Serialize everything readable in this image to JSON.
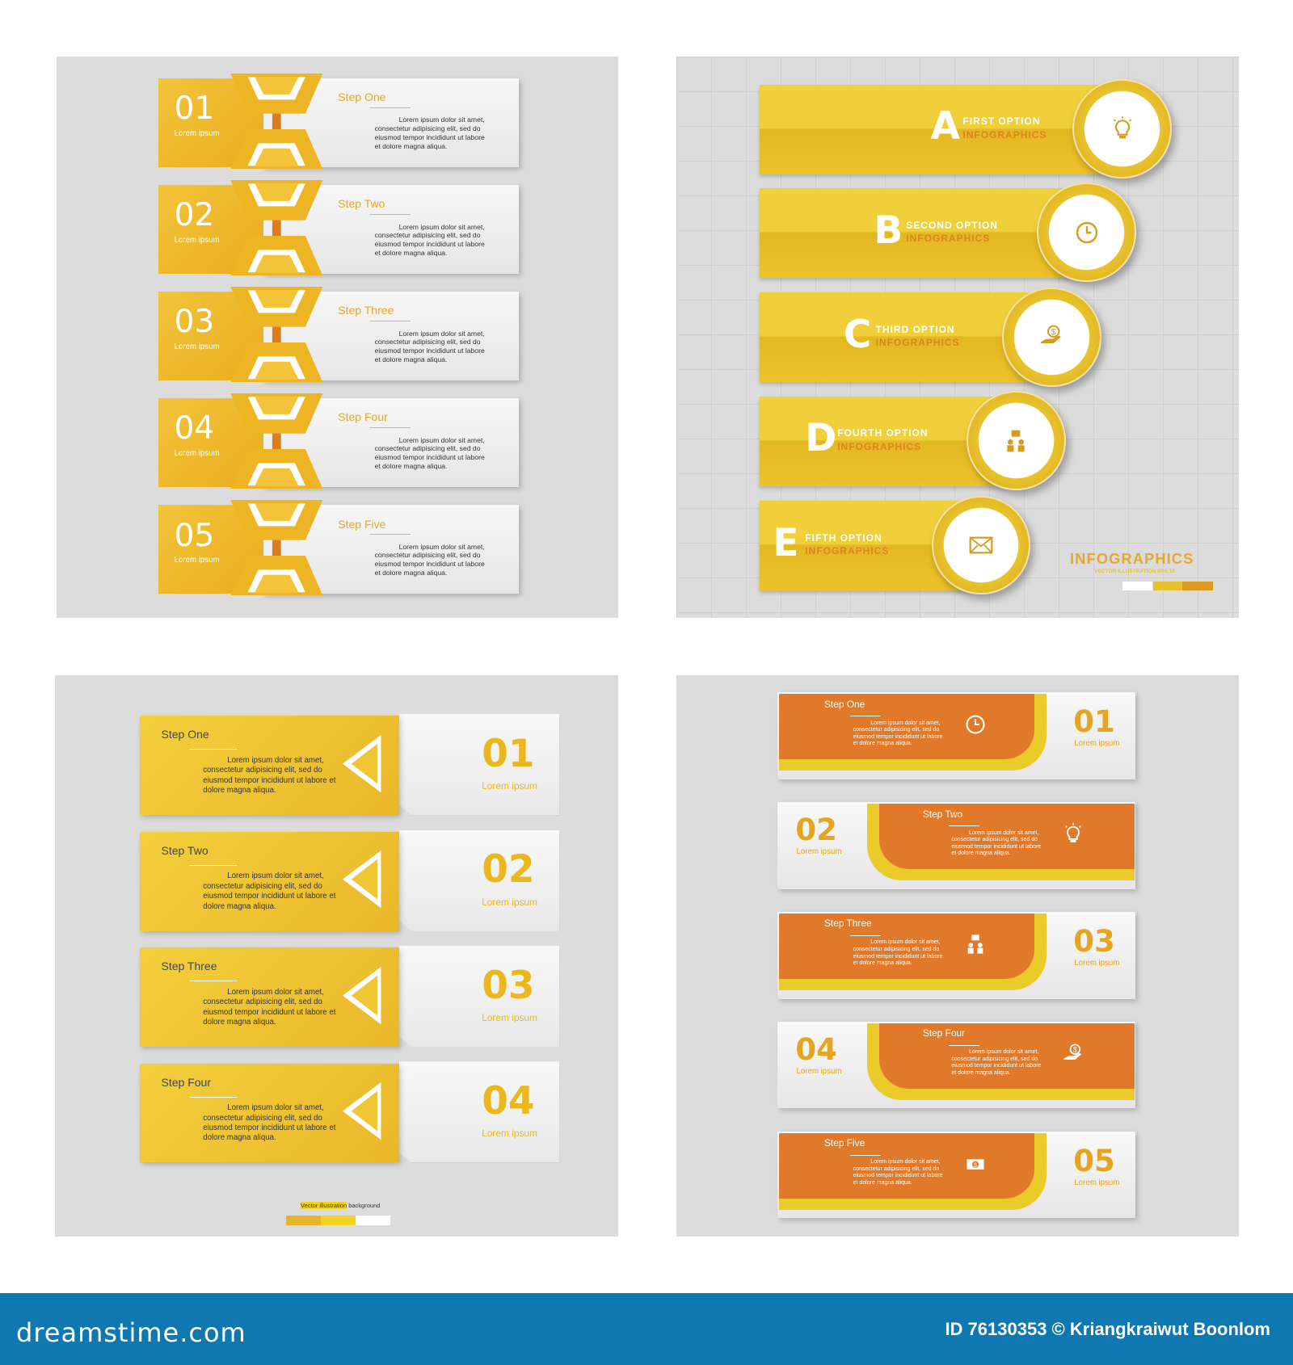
{
  "colors": {
    "yellow": "#f0c030",
    "orange": "#e07a2a",
    "panel": "#dcdcdc",
    "banner": "#0f78b0"
  },
  "top_left": {
    "rows": [
      {
        "number": "01",
        "sub": "Lorem ipsum",
        "title": "Step One",
        "text": "Lorem ipsum dolor sit amet, consectetur adipisicing elit, sed do eiusmod tempor incididunt ut labore et dolore magna aliqua."
      },
      {
        "number": "02",
        "sub": "Lorem ipsum",
        "title": "Step Two",
        "text": "Lorem ipsum dolor sit amet, consectetur adipisicing elit, sed do eiusmod tempor incididunt ut labore et dolore magna aliqua."
      },
      {
        "number": "03",
        "sub": "Lorem ipsum",
        "title": "Step Three",
        "text": "Lorem ipsum dolor sit amet, consectetur adipisicing elit, sed do eiusmod tempor incididunt ut labore et dolore magna aliqua."
      },
      {
        "number": "04",
        "sub": "Lorem ipsum",
        "title": "Step Four",
        "text": "Lorem ipsum dolor sit amet, consectetur adipisicing elit, sed do eiusmod tempor incididunt ut labore et dolore magna aliqua."
      },
      {
        "number": "05",
        "sub": "Lorem ipsum",
        "title": "Step Five",
        "text": "Lorem ipsum dolor sit amet, consectetur adipisicing elit, sed do eiusmod tempor incididunt ut labore et dolore magna aliqua."
      }
    ]
  },
  "top_right": {
    "rows": [
      {
        "letter": "A",
        "line1": "FIRST OPTION",
        "line2": "INFOGRAPHICS",
        "icon": "lightbulb-icon"
      },
      {
        "letter": "B",
        "line1": "SECOND OPTION",
        "line2": "INFOGRAPHICS",
        "icon": "clock-icon"
      },
      {
        "letter": "C",
        "line1": "THIRD OPTION",
        "line2": "INFOGRAPHICS",
        "icon": "hand-dollar-icon"
      },
      {
        "letter": "D",
        "line1": "FOURTH OPTION",
        "line2": "INFOGRAPHICS",
        "icon": "org-chart-icon"
      },
      {
        "letter": "E",
        "line1": "FIFTH OPTION",
        "line2": "INFOGRAPHICS",
        "icon": "envelope-icon"
      }
    ],
    "title": "INFOGRAPHICS",
    "subtitle": "VECTOR ILLUSTRATION EPS 10"
  },
  "bottom_left": {
    "rows": [
      {
        "number": "01",
        "sub": "Lorem ipsum",
        "title": "Step One",
        "text": "Lorem ipsum dolor sit amet, consectetur adipisicing elit, sed do eiusmod tempor incididunt ut labore et dolore magna aliqua."
      },
      {
        "number": "02",
        "sub": "Lorem ipsum",
        "title": "Step Two",
        "text": "Lorem ipsum dolor sit amet, consectetur adipisicing elit, sed do eiusmod tempor incididunt ut labore et dolore magna aliqua."
      },
      {
        "number": "03",
        "sub": "Lorem ipsum",
        "title": "Step Three",
        "text": "Lorem ipsum dolor sit amet, consectetur adipisicing elit, sed do eiusmod tempor incididunt ut labore et dolore magna aliqua."
      },
      {
        "number": "04",
        "sub": "Lorem ipsum",
        "title": "Step Four",
        "text": "Lorem ipsum dolor sit amet, consectetur adipisicing elit, sed do eiusmod tempor incididunt ut labore et dolore magna aliqua."
      }
    ],
    "footer_highlight": "Vector illustration",
    "footer_rest": "background"
  },
  "bottom_right": {
    "rows": [
      {
        "number": "01",
        "sub": "Lorem ipsum",
        "title": "Step One",
        "text": "Lorem ipsum dolor sit amet, consectetur adipisicing elit, sed do eiusmod tempor incididunt ut labore et dolore magna aliqua.",
        "icon": "clock-icon"
      },
      {
        "number": "02",
        "sub": "Lorem ipsum",
        "title": "Step Two",
        "text": "Lorem ipsum dolor sit amet, consectetur adipisicing elit, sed do eiusmod tempor incididunt ut labore et dolore magna aliqua.",
        "icon": "lightbulb-icon"
      },
      {
        "number": "03",
        "sub": "Lorem ipsum",
        "title": "Step Three",
        "text": "Lorem ipsum dolor sit amet, consectetur adipisicing elit, sed do eiusmod tempor incididunt ut labore et dolore magna aliqua.",
        "icon": "org-chart-icon"
      },
      {
        "number": "04",
        "sub": "Lorem ipsum",
        "title": "Step Four",
        "text": "Lorem ipsum dolor sit amet, consectetur adipisicing elit, sed do eiusmod tempor incididunt ut labore et dolore magna aliqua.",
        "icon": "hand-dollar-icon"
      },
      {
        "number": "05",
        "sub": "Lorem ipsum",
        "title": "Step Five",
        "text": "Lorem ipsum dolor sit amet, consectetur adipisicing elit, sed do eiusmod tempor incididunt ut labore et dolore magna aliqua.",
        "icon": "money-icon"
      }
    ]
  },
  "banner": {
    "logo": "dreamstime.com",
    "credit": "ID 76130353 © Kriangkraiwut Boonlom"
  }
}
